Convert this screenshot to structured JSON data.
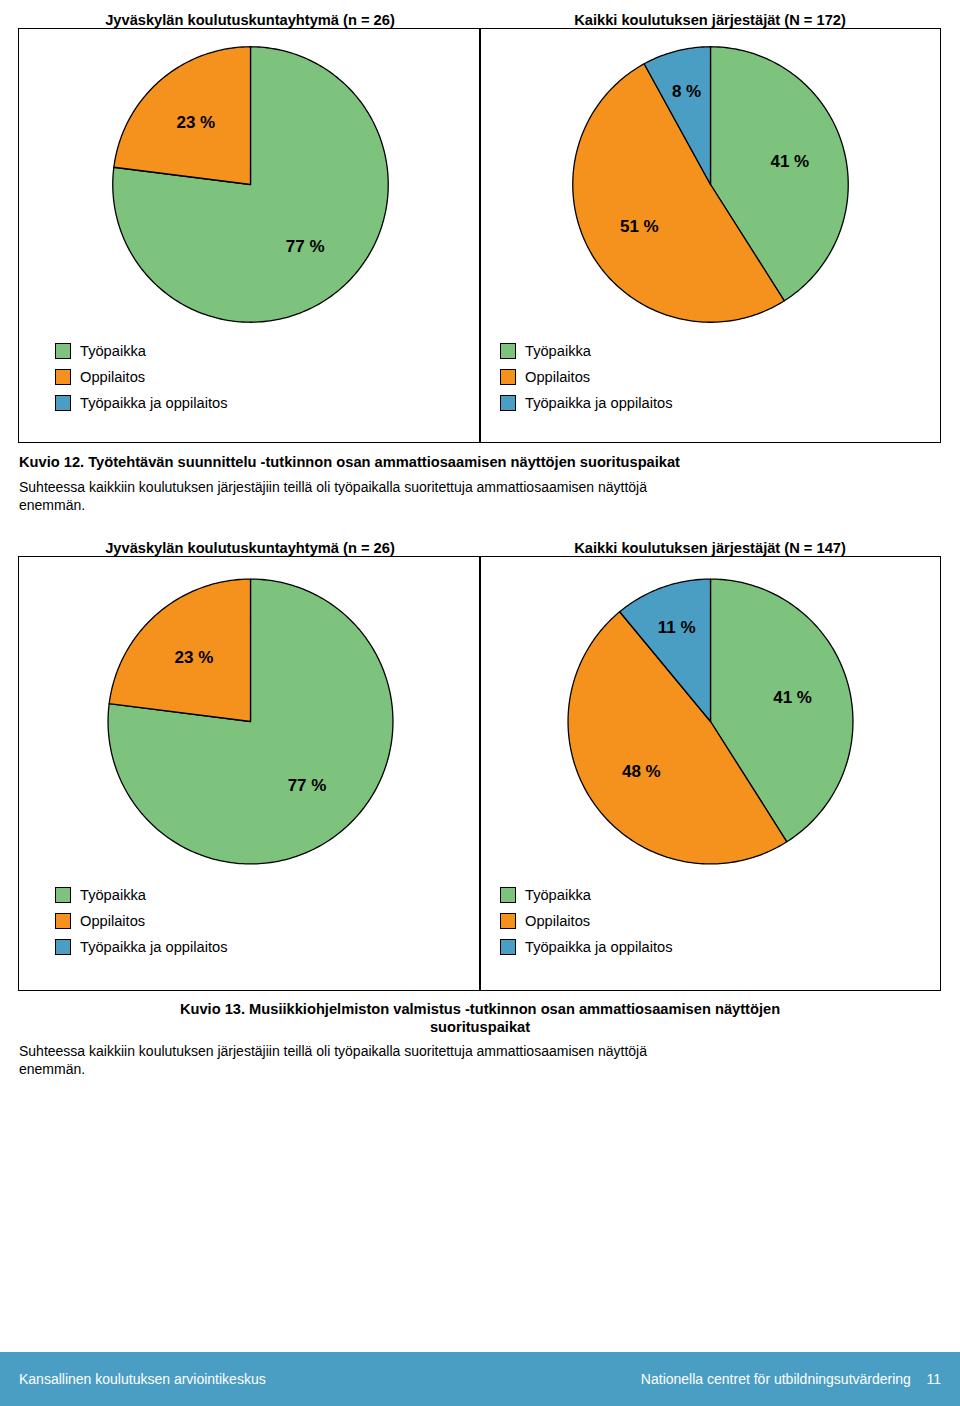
{
  "chart_data": [
    {
      "type": "pie",
      "title": "Jyväskylän koulutuskuntayhtymä (n = 26)",
      "categories": [
        "Työpaikka",
        "Oppilaitos"
      ],
      "values": [
        77,
        23
      ],
      "value_labels": [
        "77 %",
        "23 %"
      ],
      "colors": [
        "#7DC27D",
        "#F5921E"
      ],
      "data_labels": true
    },
    {
      "type": "pie",
      "title": "Kaikki koulutuksen järjestäjät (N = 172)",
      "categories": [
        "Työpaikka",
        "Oppilaitos",
        "Työpaikka ja oppilaitos"
      ],
      "values": [
        41,
        51,
        8
      ],
      "value_labels": [
        "41 %",
        "51 %",
        "8 %"
      ],
      "colors": [
        "#7DC27D",
        "#F5921E",
        "#4A9EC4"
      ],
      "data_labels": true
    },
    {
      "type": "pie",
      "title": "Jyväskylän koulutuskuntayhtymä (n = 26)",
      "categories": [
        "Työpaikka",
        "Oppilaitos"
      ],
      "values": [
        77,
        23
      ],
      "value_labels": [
        "77 %",
        "23 %"
      ],
      "colors": [
        "#7DC27D",
        "#F5921E"
      ],
      "data_labels": true
    },
    {
      "type": "pie",
      "title": "Kaikki koulutuksen järjestäjät (N = 147)",
      "categories": [
        "Työpaikka",
        "Oppilaitos",
        "Työpaikka ja oppilaitos"
      ],
      "values": [
        41,
        48,
        11
      ],
      "value_labels": [
        "41 %",
        "48 %",
        "11 %"
      ],
      "colors": [
        "#7DC27D",
        "#F5921E",
        "#4A9EC4"
      ],
      "data_labels": true
    }
  ],
  "captions": [
    {
      "title": "Kuvio 12. Työtehtävän suunnittelu -tutkinnon osan ammattiosaamisen näyttöjen suorituspaikat",
      "body": "Suhteessa kaikkiin koulutuksen järjestäjiin teillä oli työpaikalla suoritettuja ammattiosaamisen näyttöjä\nenemmän."
    },
    {
      "title": "Kuvio 13. Musiikkiohjelmiston valmistus -tutkinnon osan ammattiosaamisen näyttöjen\nsuorituspaikat",
      "body": "Suhteessa kaikkiin koulutuksen järjestäjiin teillä oli työpaikalla suoritettuja ammattiosaamisen näyttöjä\nenemmän."
    }
  ],
  "footer": {
    "left": "Kansallinen koulutuksen arviointikeskus",
    "right": "Nationella centret för utbildningsutvärdering    11",
    "color": "#4A9EC4"
  }
}
